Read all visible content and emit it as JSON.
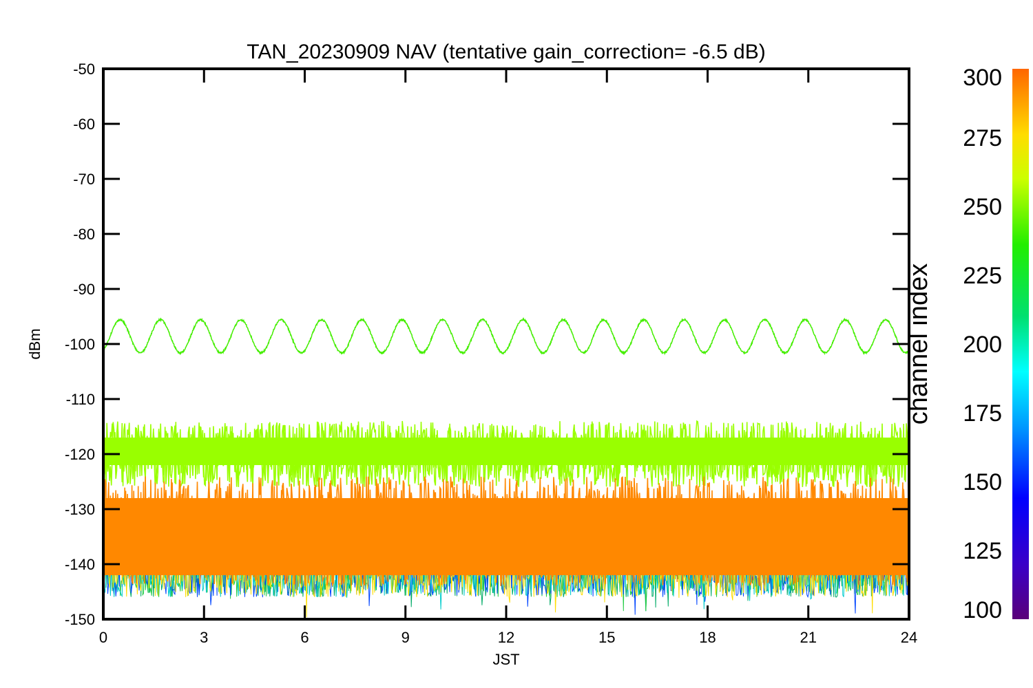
{
  "chart_data": {
    "type": "line",
    "title": "TAN_20230909 NAV (tentative gain_correction= -6.5 dB)",
    "xlabel": "JST",
    "ylabel": "dBm",
    "xlim": [
      0,
      24
    ],
    "ylim": [
      -150,
      -50
    ],
    "xticks": [
      "0",
      "3",
      "6",
      "9",
      "12",
      "15",
      "18",
      "21",
      "24"
    ],
    "yticks": [
      "-50",
      "-60",
      "-70",
      "-80",
      "-90",
      "-100",
      "-110",
      "-120",
      "-130",
      "-140",
      "-150"
    ],
    "colorbar": {
      "label": "channel index",
      "range": [
        100,
        300
      ],
      "ticks": [
        "100",
        "125",
        "150",
        "175",
        "200",
        "225",
        "250",
        "275",
        "300"
      ],
      "colormap": "rainbow (purple → blue → cyan → green → yellow → orange)"
    },
    "series": [
      {
        "color": "#44ee00",
        "description_values": "sinusoidal trace, period ≈ 1.2 h",
        "center": -98.6,
        "amplitude": 3.0,
        "period_hours": 1.2,
        "phase_hours": 0.5
      },
      {
        "color": "#99ff00",
        "center": -119.5,
        "spread_low": -126,
        "spread_high": -114
      },
      {
        "color": "#ff8800",
        "center": -135,
        "spread_low": -144,
        "spread_high": -124
      }
    ],
    "grid": false
  }
}
